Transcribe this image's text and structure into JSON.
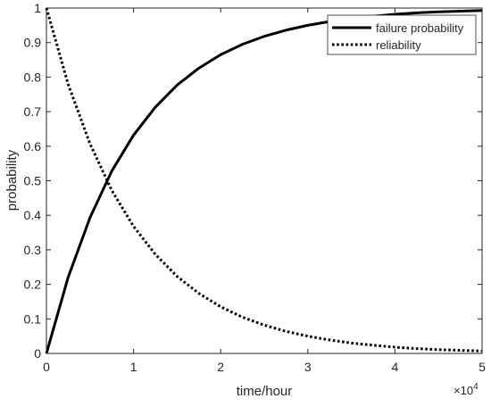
{
  "chart_data": {
    "type": "line",
    "xlabel": "time/hour",
    "ylabel": "probability",
    "x_exponent_label": "×10",
    "x_exponent_power": "4",
    "x_scale_factor": 10000,
    "xlim": [
      0,
      50000
    ],
    "ylim": [
      0,
      1
    ],
    "grid": false,
    "legend_position": "top-right",
    "x_ticks": [
      0,
      10000,
      20000,
      30000,
      40000,
      50000
    ],
    "x_tick_labels": [
      "0",
      "1",
      "2",
      "3",
      "4",
      "5"
    ],
    "y_ticks": [
      0,
      0.1,
      0.2,
      0.3,
      0.4,
      0.5,
      0.6,
      0.7,
      0.8,
      0.9,
      1
    ],
    "y_tick_labels": [
      "0",
      "0.1",
      "0.2",
      "0.3",
      "0.4",
      "0.5",
      "0.6",
      "0.7",
      "0.8",
      "0.9",
      "1"
    ],
    "x": [
      0,
      2500,
      5000,
      7500,
      10000,
      12500,
      15000,
      17500,
      20000,
      22500,
      25000,
      27500,
      30000,
      32500,
      35000,
      37500,
      40000,
      42500,
      45000,
      47500,
      50000
    ],
    "series": [
      {
        "name": "failure probability",
        "style": "solid",
        "color": "#000000",
        "values": [
          0,
          0.221,
          0.393,
          0.528,
          0.632,
          0.713,
          0.777,
          0.826,
          0.865,
          0.895,
          0.918,
          0.936,
          0.95,
          0.961,
          0.97,
          0.976,
          0.982,
          0.986,
          0.989,
          0.991,
          0.993
        ]
      },
      {
        "name": "reliability",
        "style": "dotted",
        "color": "#000000",
        "values": [
          1,
          0.779,
          0.607,
          0.472,
          0.368,
          0.287,
          0.223,
          0.174,
          0.135,
          0.105,
          0.082,
          0.064,
          0.05,
          0.039,
          0.03,
          0.024,
          0.018,
          0.014,
          0.011,
          0.009,
          0.007
        ]
      }
    ]
  }
}
